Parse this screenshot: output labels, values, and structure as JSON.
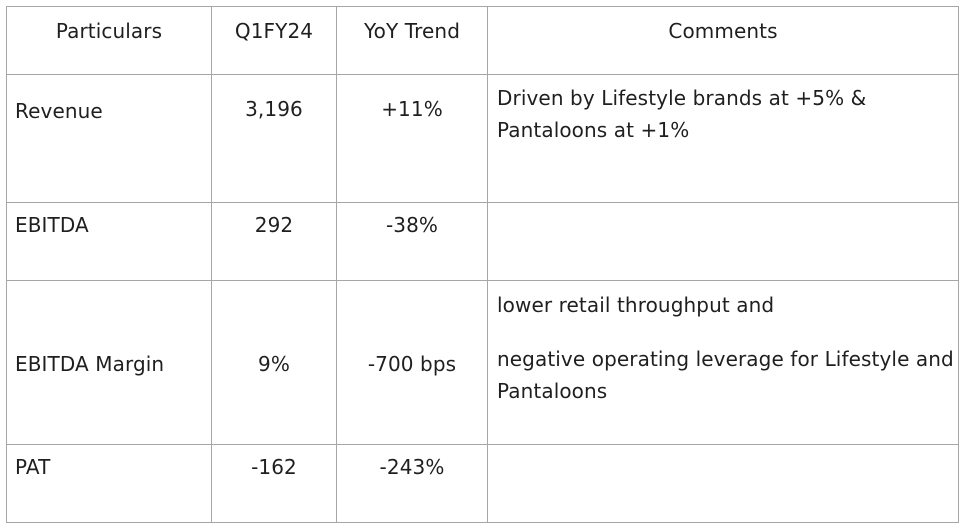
{
  "table": {
    "headers": [
      "Particulars",
      "Q1FY24",
      "YoY Trend",
      "Comments"
    ],
    "rows": [
      {
        "particular": "Revenue",
        "q1fy24": "3,196",
        "yoy": "+11%",
        "comments": [
          "Driven by Lifestyle brands at +5% & Pantaloons at +1%"
        ]
      },
      {
        "particular": "EBITDA",
        "q1fy24": "292",
        "yoy": "-38%",
        "comments": []
      },
      {
        "particular": "EBITDA Margin",
        "q1fy24": "9%",
        "yoy": "-700 bps",
        "comments": [
          "lower retail throughput and",
          "negative operating leverage for Lifestyle and Pantaloons"
        ]
      },
      {
        "particular": "PAT",
        "q1fy24": "-162",
        "yoy": "-243%",
        "comments": []
      }
    ]
  }
}
